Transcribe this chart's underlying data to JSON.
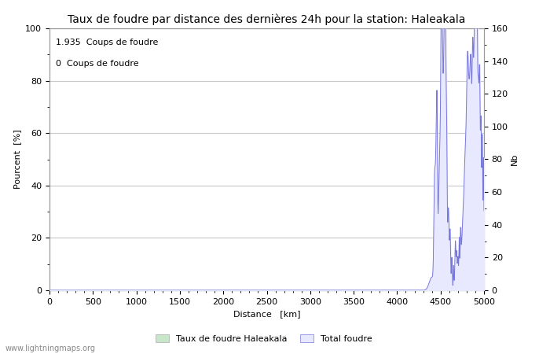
{
  "title": "Taux de foudre par distance des dernières 24h pour la station: Haleakala",
  "xlabel": "Distance   [km]",
  "ylabel_left": "Pourcent  [%]",
  "ylabel_right": "Nb",
  "annotation_line1": "1.935  Coups de foudre",
  "annotation_line2": "0  Coups de foudre",
  "watermark": "www.lightningmaps.org",
  "legend_label1": "Taux de foudre Haleakala",
  "legend_label2": "Total foudre",
  "xlim": [
    0,
    5000
  ],
  "ylim_left": [
    0,
    100
  ],
  "ylim_right": [
    0,
    160
  ],
  "xticks": [
    0,
    500,
    1000,
    1500,
    2000,
    2500,
    3000,
    3500,
    4000,
    4500,
    5000
  ],
  "yticks_left": [
    0,
    20,
    40,
    60,
    80,
    100
  ],
  "yticks_right": [
    0,
    20,
    40,
    60,
    80,
    100,
    120,
    140,
    160
  ],
  "grid_color": "#c8c8c8",
  "bg_color": "#ffffff",
  "line_color": "#7777dd",
  "fill_color": "#e8e8ff",
  "legend_color1": "#c8e6c9",
  "legend_color2": "#e8e8ff",
  "title_fontsize": 10,
  "label_fontsize": 8,
  "tick_fontsize": 8,
  "annotation_fontsize": 8
}
